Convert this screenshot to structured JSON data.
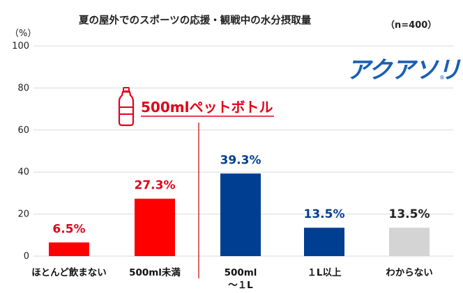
{
  "header": {
    "title": "夏の屋外でのスポーツの応援・観戦中の水分摂取量",
    "note": "（n=400）",
    "unit": "（%）"
  },
  "brand": {
    "name": "アクアソリタ",
    "registered": "®"
  },
  "callout": {
    "text": "500mlペットボトル",
    "icon": "plastic-bottle-icon"
  },
  "colors": {
    "red": "#ff0000",
    "blue": "#003e92",
    "gray": "#d4d4d4",
    "callout": "#e2001a"
  },
  "chart_data": {
    "type": "bar",
    "title": "夏の屋外でのスポーツの応援・観戦中の水分摂取量",
    "ylabel": "（%）",
    "ylim": [
      0,
      100
    ],
    "yticks": [
      0,
      20,
      40,
      60,
      80,
      100
    ],
    "categories": [
      "ほとんど飲まない",
      "500ml未満",
      "500ml\n～１L",
      "１L以上",
      "わからない"
    ],
    "values": [
      6.5,
      27.3,
      39.3,
      13.5,
      13.5
    ],
    "value_labels": [
      "6.5%",
      "27.3%",
      "39.3%",
      "13.5%",
      "13.5%"
    ],
    "bar_colors": [
      "#ff0000",
      "#ff0000",
      "#003e92",
      "#003e92",
      "#d4d4d4"
    ],
    "label_colors": [
      "#e2001a",
      "#e2001a",
      "#003e92",
      "#003e92",
      "#222222"
    ],
    "grid": true,
    "legend": "none"
  }
}
